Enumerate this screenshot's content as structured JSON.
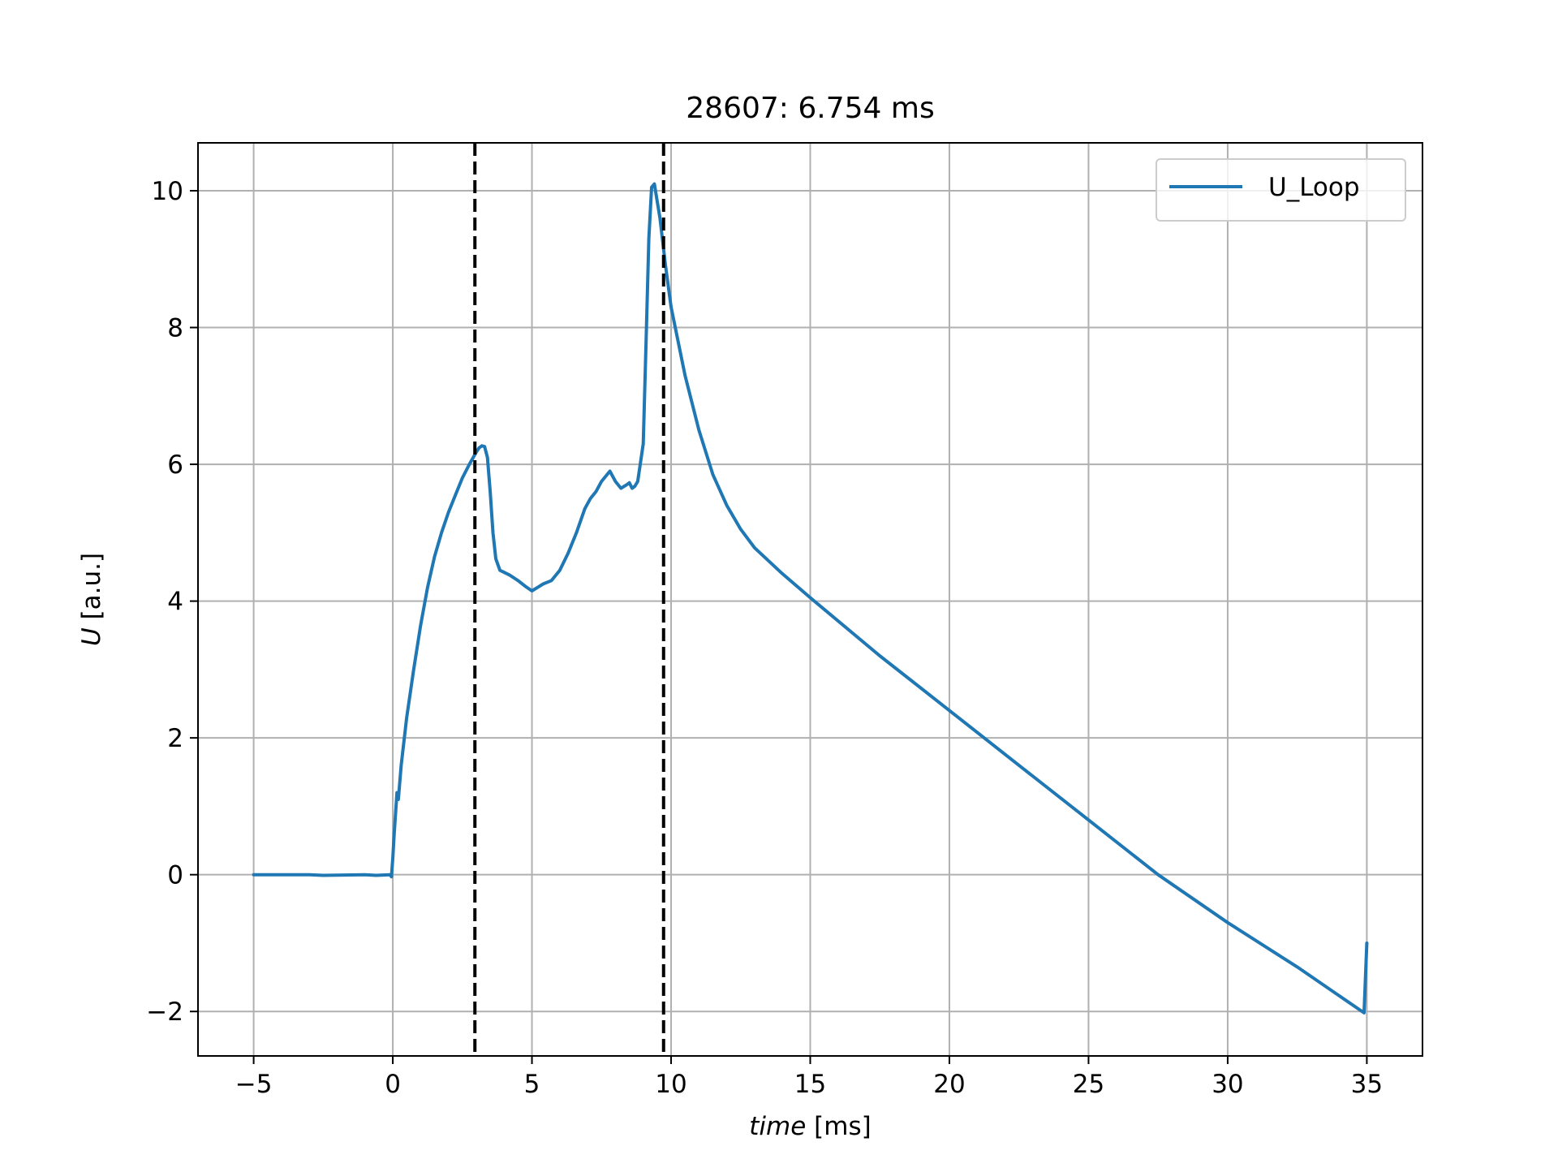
{
  "chart_data": {
    "type": "line",
    "title": "28607: 6.754 ms",
    "xlabel": "time",
    "xunit": " [ms]",
    "ylabel": "U",
    "yunit": " [a.u.]",
    "xlim": [
      -7,
      37
    ],
    "ylim": [
      -2.65,
      10.7
    ],
    "xticks": [
      -5,
      0,
      5,
      10,
      15,
      20,
      25,
      30,
      35
    ],
    "yticks": [
      -2,
      0,
      2,
      4,
      6,
      8,
      10
    ],
    "xtick_labels": [
      "−5",
      "0",
      "5",
      "10",
      "15",
      "20",
      "25",
      "30",
      "35"
    ],
    "ytick_labels": [
      "−2",
      "0",
      "2",
      "4",
      "6",
      "8",
      "10"
    ],
    "grid": true,
    "legend": {
      "position": "top-right"
    },
    "vlines": [
      {
        "x": 2.95,
        "style": "dashed",
        "color": "#000000"
      },
      {
        "x": 9.73,
        "style": "dashed",
        "color": "#000000"
      }
    ],
    "series": [
      {
        "name": "U_Loop",
        "color": "#1f77b4",
        "points": [
          [
            -5,
            0.0
          ],
          [
            -3,
            0.0
          ],
          [
            -2.5,
            -0.01
          ],
          [
            -1,
            0.0
          ],
          [
            -0.6,
            -0.01
          ],
          [
            -0.1,
            0.0
          ],
          [
            -0.05,
            -0.03
          ],
          [
            0.0,
            0.25
          ],
          [
            0.05,
            0.6
          ],
          [
            0.1,
            0.9
          ],
          [
            0.15,
            1.2
          ],
          [
            0.2,
            1.1
          ],
          [
            0.3,
            1.6
          ],
          [
            0.5,
            2.3
          ],
          [
            0.75,
            3.0
          ],
          [
            1.0,
            3.65
          ],
          [
            1.25,
            4.2
          ],
          [
            1.5,
            4.65
          ],
          [
            1.75,
            5.0
          ],
          [
            2.0,
            5.3
          ],
          [
            2.25,
            5.55
          ],
          [
            2.5,
            5.8
          ],
          [
            2.75,
            6.0
          ],
          [
            3.0,
            6.18
          ],
          [
            3.1,
            6.24
          ],
          [
            3.2,
            6.27
          ],
          [
            3.3,
            6.26
          ],
          [
            3.4,
            6.1
          ],
          [
            3.5,
            5.6
          ],
          [
            3.6,
            5.0
          ],
          [
            3.7,
            4.62
          ],
          [
            3.85,
            4.45
          ],
          [
            4.0,
            4.42
          ],
          [
            4.2,
            4.38
          ],
          [
            4.5,
            4.3
          ],
          [
            4.75,
            4.22
          ],
          [
            5.0,
            4.15
          ],
          [
            5.2,
            4.2
          ],
          [
            5.4,
            4.25
          ],
          [
            5.7,
            4.3
          ],
          [
            6.0,
            4.45
          ],
          [
            6.3,
            4.7
          ],
          [
            6.6,
            5.0
          ],
          [
            6.9,
            5.35
          ],
          [
            7.1,
            5.5
          ],
          [
            7.3,
            5.6
          ],
          [
            7.5,
            5.75
          ],
          [
            7.8,
            5.9
          ],
          [
            8.0,
            5.75
          ],
          [
            8.2,
            5.65
          ],
          [
            8.4,
            5.7
          ],
          [
            8.5,
            5.73
          ],
          [
            8.6,
            5.65
          ],
          [
            8.7,
            5.68
          ],
          [
            8.8,
            5.75
          ],
          [
            9.0,
            6.3
          ],
          [
            9.1,
            7.8
          ],
          [
            9.2,
            9.3
          ],
          [
            9.3,
            10.05
          ],
          [
            9.4,
            10.1
          ],
          [
            9.6,
            9.6
          ],
          [
            9.8,
            8.9
          ],
          [
            10.0,
            8.3
          ],
          [
            10.5,
            7.3
          ],
          [
            11.0,
            6.5
          ],
          [
            11.5,
            5.85
          ],
          [
            12.0,
            5.4
          ],
          [
            12.5,
            5.05
          ],
          [
            13.0,
            4.78
          ],
          [
            14.0,
            4.4
          ],
          [
            15.0,
            4.05
          ],
          [
            17.5,
            3.2
          ],
          [
            20.0,
            2.4
          ],
          [
            22.5,
            1.6
          ],
          [
            25.0,
            0.8
          ],
          [
            27.5,
            0.0
          ],
          [
            30.0,
            -0.7
          ],
          [
            32.5,
            -1.35
          ],
          [
            34.9,
            -2.02
          ],
          [
            35.0,
            -1.0
          ]
        ]
      }
    ]
  }
}
